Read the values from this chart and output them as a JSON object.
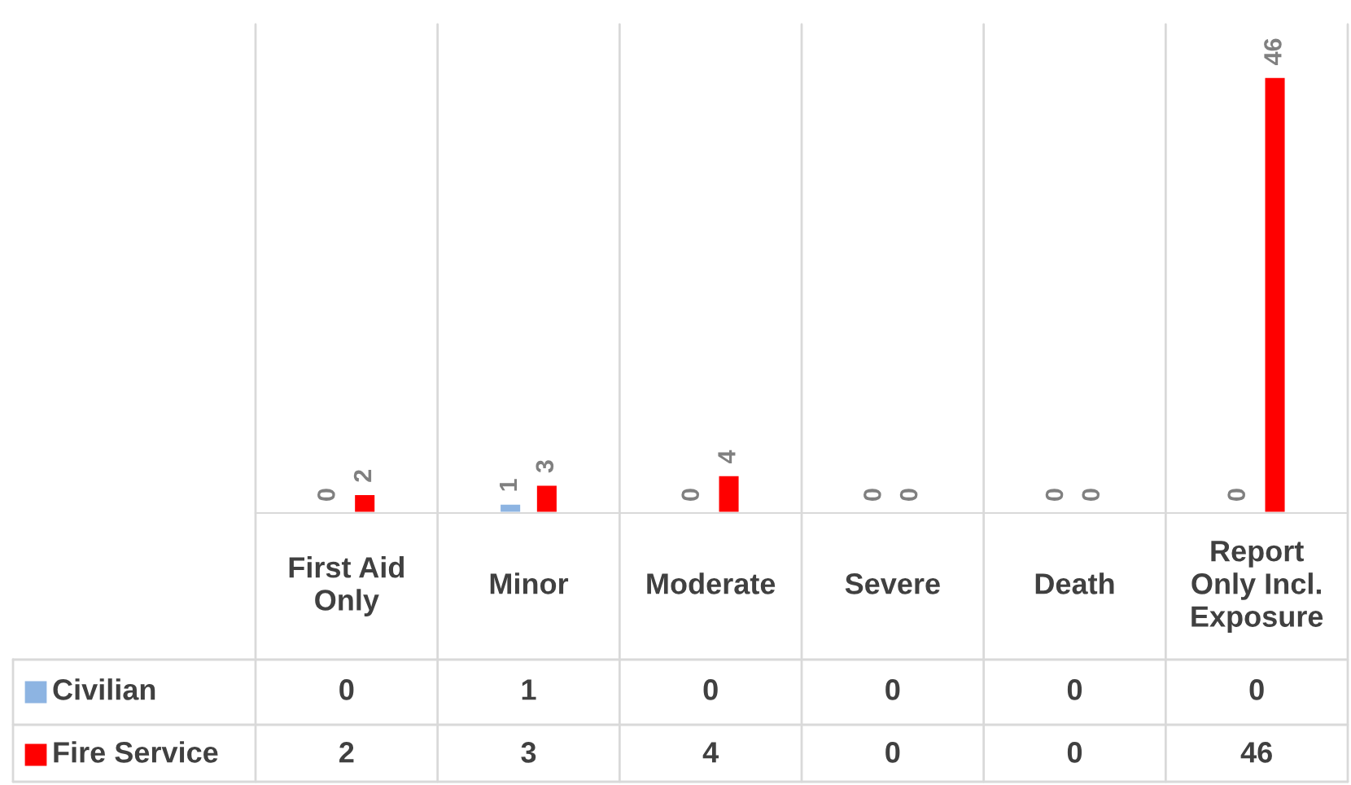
{
  "chart_data": {
    "type": "bar",
    "categories": [
      "First Aid Only",
      "Minor",
      "Moderate",
      "Severe",
      "Death",
      "Report Only Incl. Exposure"
    ],
    "series": [
      {
        "name": "Civilian",
        "color": "#8db4e2",
        "values": [
          0,
          1,
          0,
          0,
          0,
          0
        ],
        "value_labels": [
          "0",
          "1",
          "0",
          "0",
          "0",
          "0"
        ]
      },
      {
        "name": "Fire Service",
        "color": "#ff0000",
        "values": [
          2,
          3,
          4,
          0,
          0,
          46
        ],
        "value_labels": [
          "2",
          "3",
          "4",
          "0",
          "0",
          "46"
        ]
      }
    ],
    "annotations": [
      "0",
      "1",
      "0",
      "0",
      "0",
      "0",
      "2",
      "3",
      "4",
      "0",
      "0",
      "46"
    ],
    "legend": "bottom",
    "grid": "x"
  }
}
